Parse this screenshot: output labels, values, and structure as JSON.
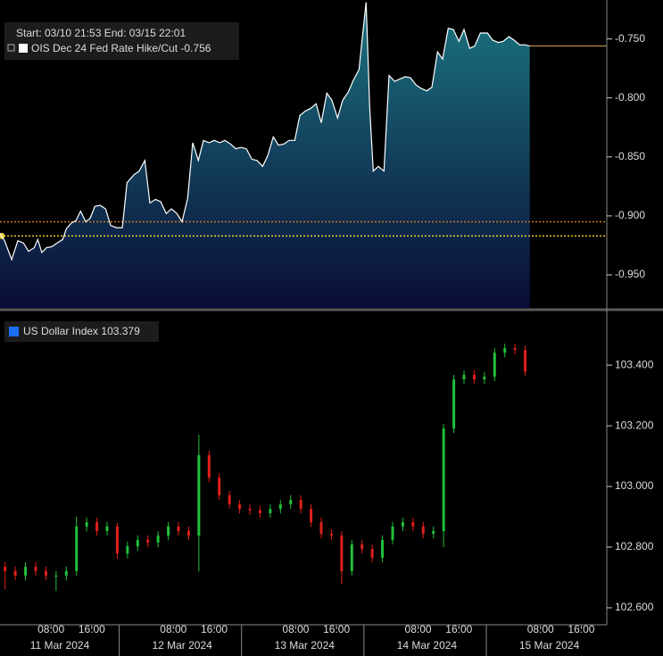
{
  "chart_data": [
    {
      "type": "area",
      "subtitle": "Start: 03/10 21:53 End: 03/15 22:01",
      "series_name": "OIS Dec 24 Fed Rate Hike/Cut",
      "last_value": -0.756,
      "line_color": "#ffffff",
      "fill_top": "#1b7580",
      "fill_bottom": "#0a0c38",
      "last_line_color": "#d9a050",
      "reference_lines": [
        {
          "value": -0.905,
          "color": "#c8781e"
        },
        {
          "value": -0.917,
          "color": "#e8d030"
        }
      ],
      "xlim": [
        -2,
        117
      ],
      "ylim": [
        -0.978,
        -0.717
      ],
      "yticks": [
        {
          "value": -0.75,
          "label": "-0.750"
        },
        {
          "value": -0.8,
          "label": "-0.800"
        },
        {
          "value": -0.85,
          "label": "-0.850"
        },
        {
          "value": -0.9,
          "label": "-0.900"
        },
        {
          "value": -0.95,
          "label": "-0.950"
        }
      ],
      "x": [
        -2.0,
        -1.1,
        0.3,
        1.5,
        2.6,
        3.6,
        4.7,
        5.4,
        6.2,
        7.1,
        8.2,
        9.2,
        10.3,
        11.0,
        12.0,
        12.9,
        13.8,
        14.8,
        15.7,
        16.6,
        17.6,
        18.7,
        19.7,
        20.8,
        22.0,
        22.9,
        24.3,
        25.3,
        26.4,
        27.4,
        28.5,
        29.5,
        30.6,
        31.6,
        32.7,
        33.7,
        34.8,
        35.8,
        36.9,
        37.9,
        39.0,
        40.0,
        41.1,
        42.1,
        43.2,
        44.2,
        45.3,
        46.3,
        47.4,
        48.4,
        49.5,
        50.5,
        51.6,
        52.6,
        53.7,
        54.7,
        55.8,
        56.8,
        57.9,
        58.9,
        60.0,
        61.0,
        62.1,
        63.1,
        64.2,
        65.2,
        66.3,
        67.3,
        68.4,
        69.1,
        69.8,
        70.5,
        71.2,
        72.2,
        73.3,
        74.3,
        75.4,
        76.4,
        77.5,
        78.5,
        79.6,
        80.6,
        81.7,
        82.7,
        83.8,
        84.8,
        85.9,
        86.9,
        88.0,
        89.0,
        90.1,
        91.1,
        92.2,
        93.6,
        94.6,
        95.7,
        96.7,
        97.8,
        98.8,
        99.9,
        100.9,
        101.9
      ],
      "values": [
        -0.915,
        -0.921,
        -0.937,
        -0.921,
        -0.923,
        -0.93,
        -0.927,
        -0.92,
        -0.931,
        -0.927,
        -0.926,
        -0.923,
        -0.92,
        -0.911,
        -0.906,
        -0.904,
        -0.896,
        -0.905,
        -0.902,
        -0.892,
        -0.891,
        -0.894,
        -0.908,
        -0.91,
        -0.91,
        -0.872,
        -0.865,
        -0.862,
        -0.853,
        -0.889,
        -0.886,
        -0.888,
        -0.898,
        -0.894,
        -0.898,
        -0.905,
        -0.885,
        -0.838,
        -0.853,
        -0.836,
        -0.838,
        -0.836,
        -0.838,
        -0.836,
        -0.839,
        -0.843,
        -0.842,
        -0.843,
        -0.852,
        -0.853,
        -0.858,
        -0.849,
        -0.833,
        -0.84,
        -0.839,
        -0.836,
        -0.836,
        -0.815,
        -0.811,
        -0.809,
        -0.805,
        -0.821,
        -0.796,
        -0.802,
        -0.817,
        -0.802,
        -0.795,
        -0.785,
        -0.776,
        -0.747,
        -0.719,
        -0.808,
        -0.862,
        -0.858,
        -0.862,
        -0.781,
        -0.786,
        -0.784,
        -0.782,
        -0.783,
        -0.789,
        -0.792,
        -0.794,
        -0.791,
        -0.761,
        -0.767,
        -0.741,
        -0.742,
        -0.752,
        -0.742,
        -0.758,
        -0.756,
        -0.745,
        -0.745,
        -0.751,
        -0.753,
        -0.752,
        -0.748,
        -0.751,
        -0.755,
        -0.755,
        -0.756
      ]
    },
    {
      "type": "candlestick",
      "series_name": "US Dollar Index",
      "last_value": 103.379,
      "legend_color": "#1a6ef0",
      "up_color": "#22c03a",
      "down_color": "#e0201a",
      "xlim": [
        -2,
        117
      ],
      "ylim": [
        102.544,
        103.574
      ],
      "yticks": [
        {
          "value": 103.4,
          "label": "103.400"
        },
        {
          "value": 103.2,
          "label": "103.200"
        },
        {
          "value": 103.0,
          "label": "103.000"
        },
        {
          "value": 102.8,
          "label": "102.800"
        },
        {
          "value": 102.6,
          "label": "102.600"
        }
      ],
      "xticks": [
        {
          "value": 8,
          "label": "08:00"
        },
        {
          "value": 16,
          "label": "16:00"
        },
        {
          "value": 32,
          "label": "08:00"
        },
        {
          "value": 40,
          "label": "16:00"
        },
        {
          "value": 56,
          "label": "08:00"
        },
        {
          "value": 64,
          "label": "16:00"
        },
        {
          "value": 80,
          "label": "08:00"
        },
        {
          "value": 88,
          "label": "16:00"
        },
        {
          "value": 104,
          "label": "08:00"
        },
        {
          "value": 112,
          "label": "16:00"
        }
      ],
      "date_labels": [
        "11 Mar 2024",
        "12 Mar 2024",
        "13 Mar 2024",
        "14 Mar 2024",
        "15 Mar 2024"
      ],
      "x": [
        -1,
        1,
        3,
        5,
        7,
        9,
        11,
        13,
        15,
        17,
        19,
        21,
        23,
        25,
        27,
        29,
        31,
        33,
        35,
        37,
        39,
        41,
        43,
        45,
        47,
        49,
        51,
        53,
        55,
        57,
        59,
        61,
        63,
        65,
        67,
        69,
        71,
        73,
        75,
        77,
        79,
        81,
        83,
        85,
        87,
        89,
        91,
        93,
        95,
        97,
        99,
        101
      ],
      "open": [
        102.735,
        102.721,
        102.706,
        102.735,
        102.721,
        102.706,
        102.706,
        102.721,
        102.868,
        102.882,
        102.853,
        102.868,
        102.779,
        102.803,
        102.824,
        102.815,
        102.838,
        102.868,
        102.853,
        102.838,
        103.103,
        103.029,
        102.971,
        102.941,
        102.926,
        102.921,
        102.912,
        102.926,
        102.941,
        102.956,
        102.926,
        102.882,
        102.844,
        102.838,
        102.721,
        102.809,
        102.794,
        102.765,
        102.824,
        102.868,
        102.882,
        102.868,
        102.844,
        102.853,
        103.191,
        103.353,
        103.368,
        103.353,
        103.362,
        103.441,
        103.456,
        103.45
      ],
      "high": [
        102.75,
        102.736,
        102.75,
        102.75,
        102.736,
        102.722,
        102.736,
        102.9,
        102.898,
        102.897,
        102.883,
        102.88,
        102.818,
        102.839,
        102.839,
        102.853,
        102.883,
        102.883,
        102.868,
        103.171,
        103.118,
        103.044,
        102.986,
        102.956,
        102.941,
        102.936,
        102.941,
        102.956,
        102.971,
        102.971,
        102.941,
        102.897,
        102.859,
        102.853,
        102.824,
        102.824,
        102.809,
        102.839,
        102.883,
        102.897,
        102.897,
        102.883,
        102.868,
        103.206,
        103.368,
        103.383,
        103.383,
        103.377,
        103.456,
        103.471,
        103.471,
        103.465
      ],
      "low": [
        102.66,
        102.691,
        102.69,
        102.705,
        102.69,
        102.655,
        102.69,
        102.705,
        102.852,
        102.838,
        102.838,
        102.76,
        102.763,
        102.788,
        102.8,
        102.8,
        102.823,
        102.838,
        102.823,
        102.72,
        103.014,
        102.956,
        102.926,
        102.911,
        102.906,
        102.897,
        102.897,
        102.911,
        102.926,
        102.911,
        102.867,
        102.829,
        102.823,
        102.677,
        102.706,
        102.779,
        102.75,
        102.75,
        102.809,
        102.853,
        102.853,
        102.829,
        102.829,
        102.8,
        103.176,
        103.338,
        103.338,
        103.338,
        103.347,
        103.426,
        103.435,
        103.364
      ],
      "close": [
        102.721,
        102.706,
        102.735,
        102.721,
        102.706,
        102.706,
        102.721,
        102.868,
        102.882,
        102.853,
        102.868,
        102.779,
        102.803,
        102.824,
        102.815,
        102.838,
        102.868,
        102.853,
        102.838,
        103.103,
        103.029,
        102.971,
        102.941,
        102.926,
        102.921,
        102.912,
        102.926,
        102.941,
        102.956,
        102.926,
        102.882,
        102.844,
        102.838,
        102.721,
        102.809,
        102.794,
        102.765,
        102.824,
        102.868,
        102.882,
        102.868,
        102.844,
        102.853,
        103.191,
        103.353,
        103.368,
        103.353,
        103.362,
        103.441,
        103.456,
        103.45,
        103.379
      ]
    }
  ]
}
